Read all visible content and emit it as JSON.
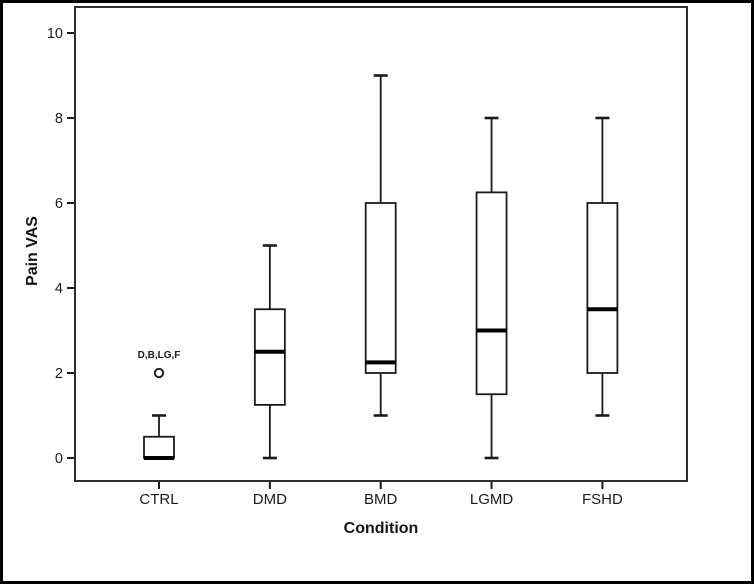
{
  "figure": {
    "background": "#ffffff",
    "outer_border_color": "#000000"
  },
  "chart_data": {
    "type": "boxplot",
    "title": "",
    "xlabel": "Condition",
    "ylabel": "Pain VAS",
    "categories": [
      "CTRL",
      "DMD",
      "BMD",
      "LGMD",
      "FSHD"
    ],
    "y_axis": {
      "min": 0,
      "max": 10,
      "tick_interval": 2,
      "ticks": [
        0,
        2,
        4,
        6,
        8,
        10
      ],
      "tick_labels": [
        "0",
        "2",
        "4",
        "6",
        "8",
        "10"
      ]
    },
    "grid": false,
    "legend": false,
    "series": [
      {
        "category": "CTRL",
        "min": 0,
        "q1": 0,
        "median": 0,
        "q3": 0.5,
        "max": 1,
        "outliers": [
          {
            "value": 2,
            "label": "D,B,LG,F"
          }
        ]
      },
      {
        "category": "DMD",
        "min": 0,
        "q1": 1.25,
        "median": 2.5,
        "q3": 3.5,
        "max": 5,
        "outliers": []
      },
      {
        "category": "BMD",
        "min": 1,
        "q1": 2,
        "median": 2.25,
        "q3": 6,
        "max": 9,
        "outliers": []
      },
      {
        "category": "LGMD",
        "min": 0,
        "q1": 1.5,
        "median": 3,
        "q3": 6.25,
        "max": 8,
        "outliers": []
      },
      {
        "category": "FSHD",
        "min": 1,
        "q1": 2,
        "median": 3.5,
        "q3": 6,
        "max": 8,
        "outliers": []
      }
    ],
    "style": {
      "line_color": "#1a1a1a",
      "median_color": "#000000",
      "box_fill": "#ffffff",
      "frame_color": "#2e2e2e",
      "text_color": "#1a1a1a",
      "background": "#ffffff"
    }
  }
}
